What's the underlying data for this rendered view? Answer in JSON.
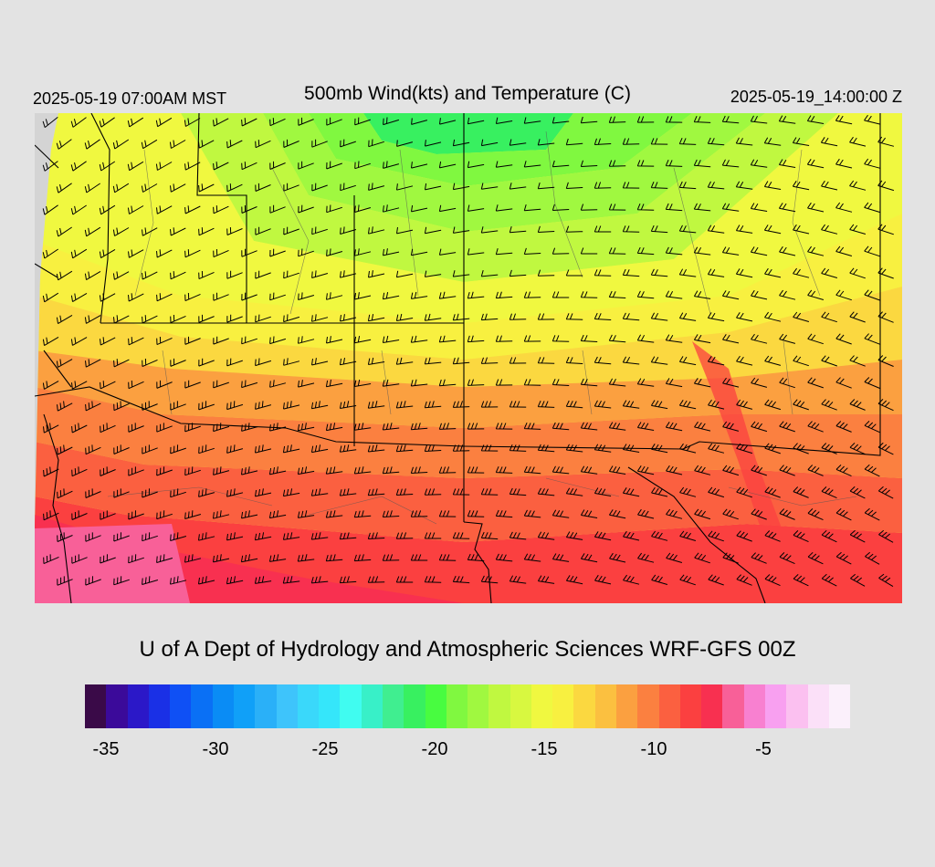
{
  "header": {
    "valid_local": "2025-05-19 07:00AM MST",
    "title": "500mb Wind(kts) and Temperature (C)",
    "valid_utc": "2025-05-19_14:00:00 Z"
  },
  "credit": "U of A Dept of Hydrology and Atmospheric Sciences WRF-GFS 00Z",
  "legend": {
    "colors": [
      "#3a0a48",
      "#3b0a9a",
      "#2b18c8",
      "#1a30e6",
      "#0f50f5",
      "#0a70f5",
      "#0a8cf5",
      "#10a0f8",
      "#2ab0f8",
      "#3ec4fb",
      "#3ad8fa",
      "#35e6fa",
      "#40fcf0",
      "#38f0c8",
      "#40ee90",
      "#38f060",
      "#48fc40",
      "#80f840",
      "#a0f840",
      "#c0f840",
      "#d8f840",
      "#f0f840",
      "#f8f040",
      "#fbd840",
      "#fbc040",
      "#fba040",
      "#fb8040",
      "#fb6040",
      "#fb4040",
      "#f83050",
      "#f86098",
      "#f880d0",
      "#f8a0f0",
      "#fbc0f0",
      "#fbe0f8",
      "#fbf0fb"
    ],
    "tick_labels": [
      "-35",
      "-30",
      "-25",
      "-20",
      "-15",
      "-10",
      "-5"
    ]
  },
  "map": {
    "field": "500mb temperature (C) with wind barbs (kts)",
    "temp_bands": [
      {
        "temp": -20,
        "color": "#38f060"
      },
      {
        "temp": -19,
        "color": "#80f840"
      },
      {
        "temp": -18,
        "color": "#a0f840"
      },
      {
        "temp": -17,
        "color": "#c0f840"
      },
      {
        "temp": -16,
        "color": "#f0f840"
      },
      {
        "temp": -15,
        "color": "#f8f040"
      },
      {
        "temp": -14,
        "color": "#fbd840"
      },
      {
        "temp": -13,
        "color": "#fba040"
      },
      {
        "temp": -12,
        "color": "#fb8040"
      },
      {
        "temp": -11,
        "color": "#fb6040"
      },
      {
        "temp": -10,
        "color": "#fb4040"
      },
      {
        "temp": -9,
        "color": "#f83050"
      },
      {
        "temp": -8,
        "color": "#f86098"
      }
    ]
  }
}
